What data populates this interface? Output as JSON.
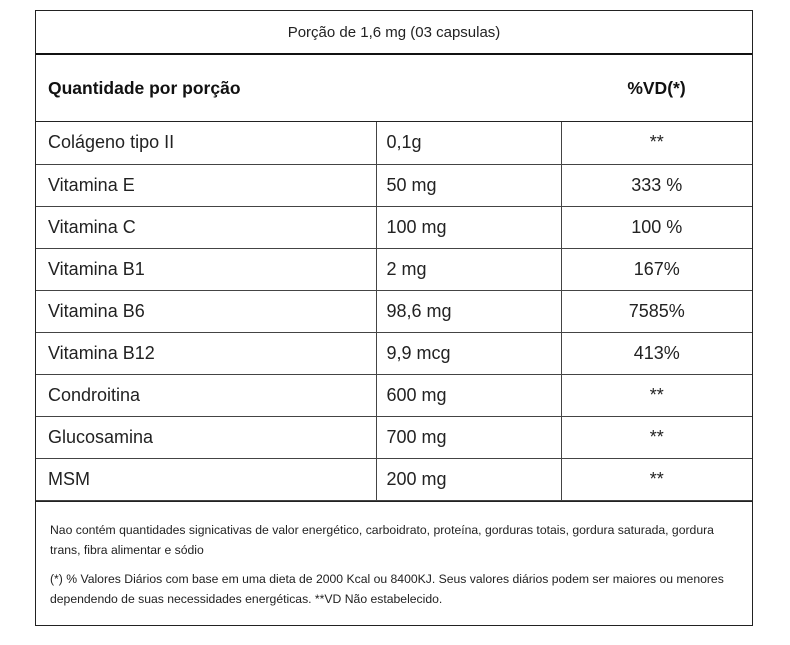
{
  "portion": "Porção de 1,6 mg (03 capsulas)",
  "header": {
    "quantity": "Quantidade por porção",
    "vd": "%VD(*)"
  },
  "rows": [
    {
      "name": "Colágeno tipo II",
      "amount": "0,1g",
      "vd": "**"
    },
    {
      "name": "Vitamina E",
      "amount": "50 mg",
      "vd": "333 %"
    },
    {
      "name": "Vitamina C",
      "amount": "100 mg",
      "vd": "100 %"
    },
    {
      "name": "Vitamina B1",
      "amount": "2 mg",
      "vd": "167%"
    },
    {
      "name": "Vitamina B6",
      "amount": "98,6 mg",
      "vd": "7585%"
    },
    {
      "name": "Vitamina B12",
      "amount": "9,9 mcg",
      "vd": "413%"
    },
    {
      "name": "Condroitina",
      "amount": "600 mg",
      "vd": "**"
    },
    {
      "name": "Glucosamina",
      "amount": "700 mg",
      "vd": "**"
    },
    {
      "name": "MSM",
      "amount": "200 mg",
      "vd": "**"
    }
  ],
  "notes": {
    "note1": "Nao contém quantidades signicativas de valor energético, carboidrato, proteína, gorduras totais, gordura saturada, gordura trans, fibra alimentar e sódio",
    "note2": "(*) % Valores Diários com base em uma dieta de 2000 Kcal ou 8400KJ. Seus valores diários podem ser maiores ou menores dependendo de suas necessidades energéticas. **VD Não estabelecido."
  }
}
